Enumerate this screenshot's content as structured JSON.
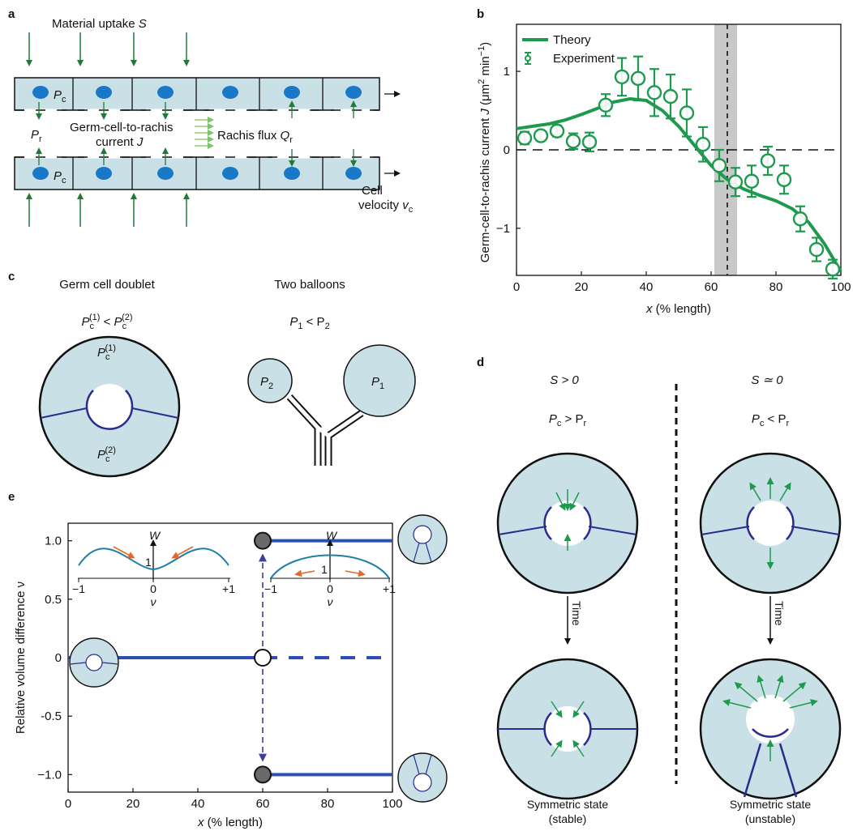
{
  "panels": {
    "a": {
      "label": "a",
      "uptake": "Material uptake",
      "uptake_sym": "S",
      "pc": "P",
      "pc_sub": "c",
      "pr": "P",
      "pr_sub": "r",
      "current_line1": "Germ-cell-to-rachis",
      "current_line2": "current",
      "current_sym": "J",
      "rachis_flux": "Rachis flux",
      "rachis_sym": "Q",
      "rachis_sub": "r",
      "cell_line1": "Cell",
      "cell_line2": "velocity",
      "cell_sym": "v",
      "cell_sub": "c"
    },
    "b": {
      "label": "b",
      "legend_theory": "Theory",
      "legend_experiment": "Experiment",
      "ylabel_pre": "Germ-cell-to-rachis current ",
      "ylabel_sym": "J",
      "ylabel_units_open": " (μm",
      "ylabel_sup1": "2",
      "ylabel_mid": " min",
      "ylabel_sup2": "−1",
      "ylabel_close": ")",
      "xlabel_sym": "x",
      "xlabel_rest": " (% length)"
    },
    "c": {
      "label": "c",
      "left_title": "Germ cell doublet",
      "right_title": "Two balloons",
      "left_ineq_p": "P",
      "left_ineq_sub1": "c",
      "left_ineq_sup1": "(1)",
      "left_ineq_lt": " < ",
      "left_ineq_sub2": "c",
      "left_ineq_sup2": "(2)",
      "right_ineq": "P",
      "right_sub1": "1",
      "right_lt": " < P",
      "right_sub2": "2",
      "p1": "P",
      "p1_sub": "1",
      "p2": "P",
      "p2_sub": "2"
    },
    "d": {
      "label": "d",
      "left_cond": "S > 0",
      "right_cond": "S ≃ 0",
      "left_ineq": "P",
      "left_ineq_sub1": "c",
      "left_ineq_op": " > P",
      "left_ineq_sub2": "r",
      "right_ineq": "P",
      "right_ineq_sub1": "c",
      "right_ineq_op": " < P",
      "right_ineq_sub2": "r",
      "time": "Time",
      "left_caption1": "Symmetric state",
      "left_caption2": "(stable)",
      "right_caption1": "Symmetric state",
      "right_caption2": "(unstable)"
    },
    "e": {
      "label": "e",
      "ylabel": "Relative volume difference ν",
      "xlabel_sym": "x",
      "xlabel_rest": " (% length)",
      "inset_w": "W",
      "inset_one": "1",
      "inset_xlabel": "ν",
      "inset_ticks": [
        "−1",
        "0",
        "+1"
      ]
    }
  },
  "chart_data": [
    {
      "panel": "b",
      "type": "scatter",
      "xlabel": "x (% length)",
      "ylabel": "Germ-cell-to-rachis current J (μm2 min−1)",
      "xlim": [
        0,
        100
      ],
      "ylim": [
        -1.6,
        1.6
      ],
      "xticks": [
        "0",
        "20",
        "40",
        "60",
        "80",
        "100"
      ],
      "yticks": [
        "1",
        "0",
        "−1"
      ],
      "ytick_values": [
        1,
        0,
        -1
      ],
      "reference_line": 0,
      "shaded_band": [
        61,
        68
      ],
      "dashed_vline": 65,
      "series": [
        {
          "name": "Theory",
          "kind": "line",
          "x": [
            0,
            5,
            10,
            15,
            20,
            25,
            30,
            35,
            40,
            45,
            50,
            55,
            60,
            65,
            70,
            75,
            80,
            85,
            90,
            95,
            100
          ],
          "y": [
            0.27,
            0.3,
            0.33,
            0.38,
            0.45,
            0.53,
            0.61,
            0.65,
            0.63,
            0.5,
            0.3,
            0.05,
            -0.2,
            -0.38,
            -0.5,
            -0.58,
            -0.65,
            -0.75,
            -0.92,
            -1.2,
            -1.55
          ]
        },
        {
          "name": "Experiment",
          "kind": "errorbar",
          "x": [
            2.5,
            7.5,
            12.5,
            17.5,
            22.5,
            27.5,
            32.5,
            37.5,
            42.5,
            47.5,
            52.5,
            57.5,
            62.5,
            67.5,
            72.5,
            77.5,
            82.5,
            87.5,
            92.5,
            97.5
          ],
          "y": [
            0.15,
            0.18,
            0.24,
            0.11,
            0.1,
            0.57,
            0.93,
            0.91,
            0.73,
            0.68,
            0.47,
            0.07,
            -0.2,
            -0.41,
            -0.4,
            -0.14,
            -0.38,
            -0.88,
            -1.27,
            -1.52
          ],
          "err": [
            0.08,
            0.06,
            0.07,
            0.1,
            0.12,
            0.14,
            0.24,
            0.28,
            0.3,
            0.28,
            0.3,
            0.22,
            0.2,
            0.18,
            0.2,
            0.18,
            0.18,
            0.16,
            0.15,
            0.12
          ]
        }
      ]
    },
    {
      "panel": "e",
      "type": "line",
      "xlabel": "x (% length)",
      "ylabel": "Relative volume difference ν",
      "xlim": [
        0,
        100
      ],
      "ylim": [
        -1.15,
        1.15
      ],
      "xticks": [
        "0",
        "20",
        "40",
        "60",
        "80",
        "100"
      ],
      "yticks": [
        "1.0",
        "0.5",
        "0",
        "-0.5",
        "−1.0"
      ],
      "ytick_values": [
        1.0,
        0.5,
        0,
        -0.5,
        -1.0
      ],
      "bifurcation_x": 60,
      "series": [
        {
          "kind": "solid",
          "x": [
            0,
            60
          ],
          "y": [
            0,
            0
          ]
        },
        {
          "kind": "dashed",
          "x": [
            60,
            100
          ],
          "y": [
            0,
            0
          ]
        },
        {
          "kind": "solid",
          "x": [
            60,
            100
          ],
          "y": [
            1,
            1
          ]
        },
        {
          "kind": "solid",
          "x": [
            60,
            100
          ],
          "y": [
            -1,
            -1
          ]
        }
      ]
    }
  ]
}
